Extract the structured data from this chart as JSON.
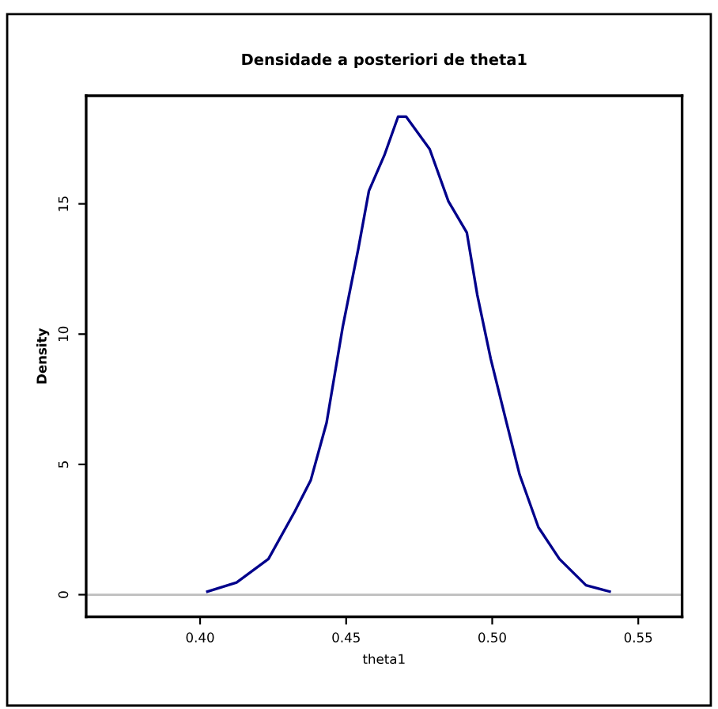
{
  "chart_data": {
    "type": "line",
    "title": "Densidade a posteriori de theta1",
    "xlabel": "theta1",
    "ylabel": "Density",
    "series": [
      {
        "color": "#00008b",
        "x": [
          0.4025,
          0.4125,
          0.4234,
          0.4324,
          0.4379,
          0.4433,
          0.4488,
          0.4542,
          0.4578,
          0.4632,
          0.4678,
          0.4705,
          0.4786,
          0.485,
          0.4913,
          0.4949,
          0.4995,
          0.5049,
          0.5094,
          0.5158,
          0.523,
          0.5321,
          0.5402
        ],
        "values": [
          0.12,
          0.47,
          1.37,
          3.19,
          4.4,
          6.6,
          10.26,
          13.3,
          15.5,
          16.9,
          18.35,
          18.35,
          17.1,
          15.1,
          13.9,
          11.5,
          9.05,
          6.6,
          4.6,
          2.59,
          1.37,
          0.36,
          0.12
        ]
      }
    ],
    "xlim": [
      0.361,
      0.565
    ],
    "xticks": [
      {
        "value": 0.4,
        "label": "0.40"
      },
      {
        "value": 0.45,
        "label": "0.45"
      },
      {
        "value": 0.5,
        "label": "0.50"
      },
      {
        "value": 0.55,
        "label": "0.55"
      }
    ],
    "ylim": [
      -0.85,
      19.15
    ],
    "yticks": [
      0,
      5,
      10,
      15
    ],
    "ref_lines": [
      {
        "axis": "y",
        "value": 0,
        "color": "#bebebe"
      }
    ],
    "grid": false
  }
}
